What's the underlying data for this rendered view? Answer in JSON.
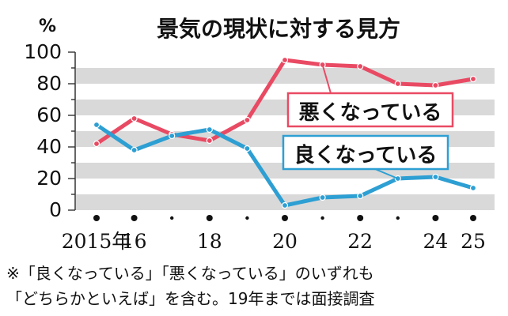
{
  "chart_data": {
    "type": "line",
    "title": "景気の現状に対する見方",
    "y_unit": "%",
    "ylim": [
      0,
      100
    ],
    "y_ticks": [
      "0",
      "20",
      "40",
      "60",
      "80",
      "100"
    ],
    "x": [
      2015,
      2016,
      2017,
      2018,
      2019,
      2020,
      2021,
      2022,
      2023,
      2024,
      2025
    ],
    "x_tick_labels": [
      {
        "x": 2015,
        "label": "2015年"
      },
      {
        "x": 2016,
        "label": "16"
      },
      {
        "x": 2018,
        "label": "18"
      },
      {
        "x": 2020,
        "label": "20"
      },
      {
        "x": 2022,
        "label": "22"
      },
      {
        "x": 2024,
        "label": "24"
      },
      {
        "x": 2025,
        "label": "25"
      }
    ],
    "x_markers": [
      {
        "x": 2015,
        "size": "large"
      },
      {
        "x": 2016,
        "size": "large"
      },
      {
        "x": 2017,
        "size": "small"
      },
      {
        "x": 2018,
        "size": "large"
      },
      {
        "x": 2019,
        "size": "small"
      },
      {
        "x": 2020,
        "size": "large"
      },
      {
        "x": 2021,
        "size": "small"
      },
      {
        "x": 2022,
        "size": "large"
      },
      {
        "x": 2023,
        "size": "small"
      },
      {
        "x": 2024,
        "size": "large"
      },
      {
        "x": 2025,
        "size": "large"
      }
    ],
    "grid": "horizontal bands",
    "series": [
      {
        "name": "悪くなっている",
        "color": "#e94a63",
        "values": [
          42,
          58,
          48,
          44,
          57,
          95,
          92,
          91,
          80,
          79,
          83
        ]
      },
      {
        "name": "良くなっている",
        "color": "#2d9fd3",
        "values": [
          54,
          38,
          47,
          51,
          39,
          3,
          8,
          9,
          20,
          21,
          14
        ]
      }
    ],
    "footnote": [
      "※「良くなっている」「悪くなっている」のいずれも",
      "「どちらかといえば」を含む。19年までは面接調査"
    ]
  }
}
